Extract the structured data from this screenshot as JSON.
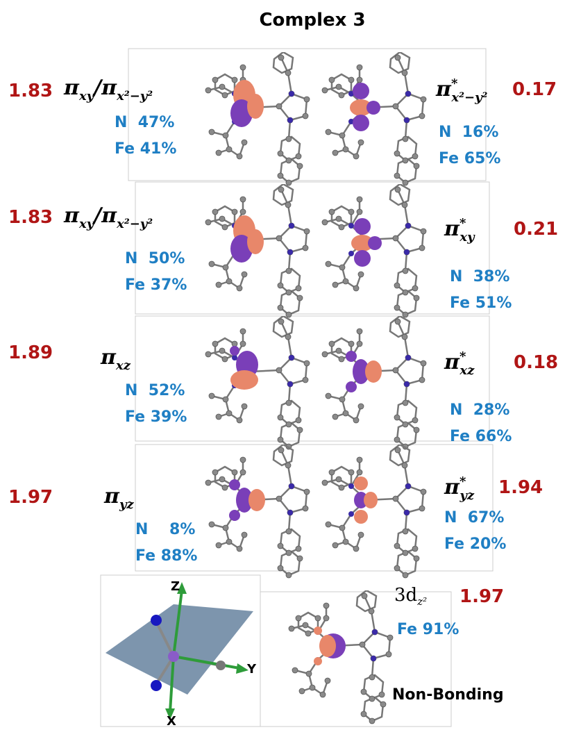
{
  "title": "Complex 3",
  "rows": [
    {
      "left": {
        "occupancy": "1.83",
        "label": [
          {
            "base": "π",
            "sub": "xy"
          },
          {
            "base": "/π",
            "sub": "x²−y²"
          }
        ],
        "composition": [
          "N  47%",
          "Fe 41%"
        ]
      },
      "right": {
        "occupancy": "0.17",
        "label": {
          "base": "π",
          "sup": "*",
          "sub": "x²−y²"
        },
        "composition": [
          "N  16%",
          "Fe 65%"
        ]
      }
    },
    {
      "left": {
        "occupancy": "1.83",
        "label": [
          {
            "base": "π",
            "sub": "xy"
          },
          {
            "base": "/π",
            "sub": "x²−y²"
          }
        ],
        "composition": [
          "N  50%",
          "Fe 37%"
        ]
      },
      "right": {
        "occupancy": "0.21",
        "label": {
          "base": "π",
          "sup": "*",
          "sub": "xy"
        },
        "composition": [
          "N  38%",
          "Fe 51%"
        ]
      }
    },
    {
      "left": {
        "occupancy": "1.89",
        "label": [
          {
            "base": "π",
            "sub": "xz"
          }
        ],
        "composition": [
          "N  52%",
          "Fe 39%"
        ]
      },
      "right": {
        "occupancy": "0.18",
        "label": {
          "base": "π",
          "sup": "*",
          "sub": "xz"
        },
        "composition": [
          "N  28%",
          "Fe 66%"
        ]
      }
    },
    {
      "left": {
        "occupancy": "1.97",
        "label": [
          {
            "base": "π",
            "sub": "yz"
          }
        ],
        "composition": [
          "N    8%",
          "Fe 88%"
        ]
      },
      "right": {
        "occupancy": "1.94",
        "label": {
          "base": "π",
          "sup": "*",
          "sub": "yz"
        },
        "composition": [
          "N  67%",
          "Fe 20%"
        ]
      }
    }
  ],
  "nonbonding": {
    "label": {
      "base": "3d",
      "sub": "z²"
    },
    "occupancy": "1.97",
    "composition": "Fe 91%",
    "note": "Non-Bonding"
  },
  "axes": {
    "z": "Z",
    "y": "Y",
    "x": "X"
  }
}
